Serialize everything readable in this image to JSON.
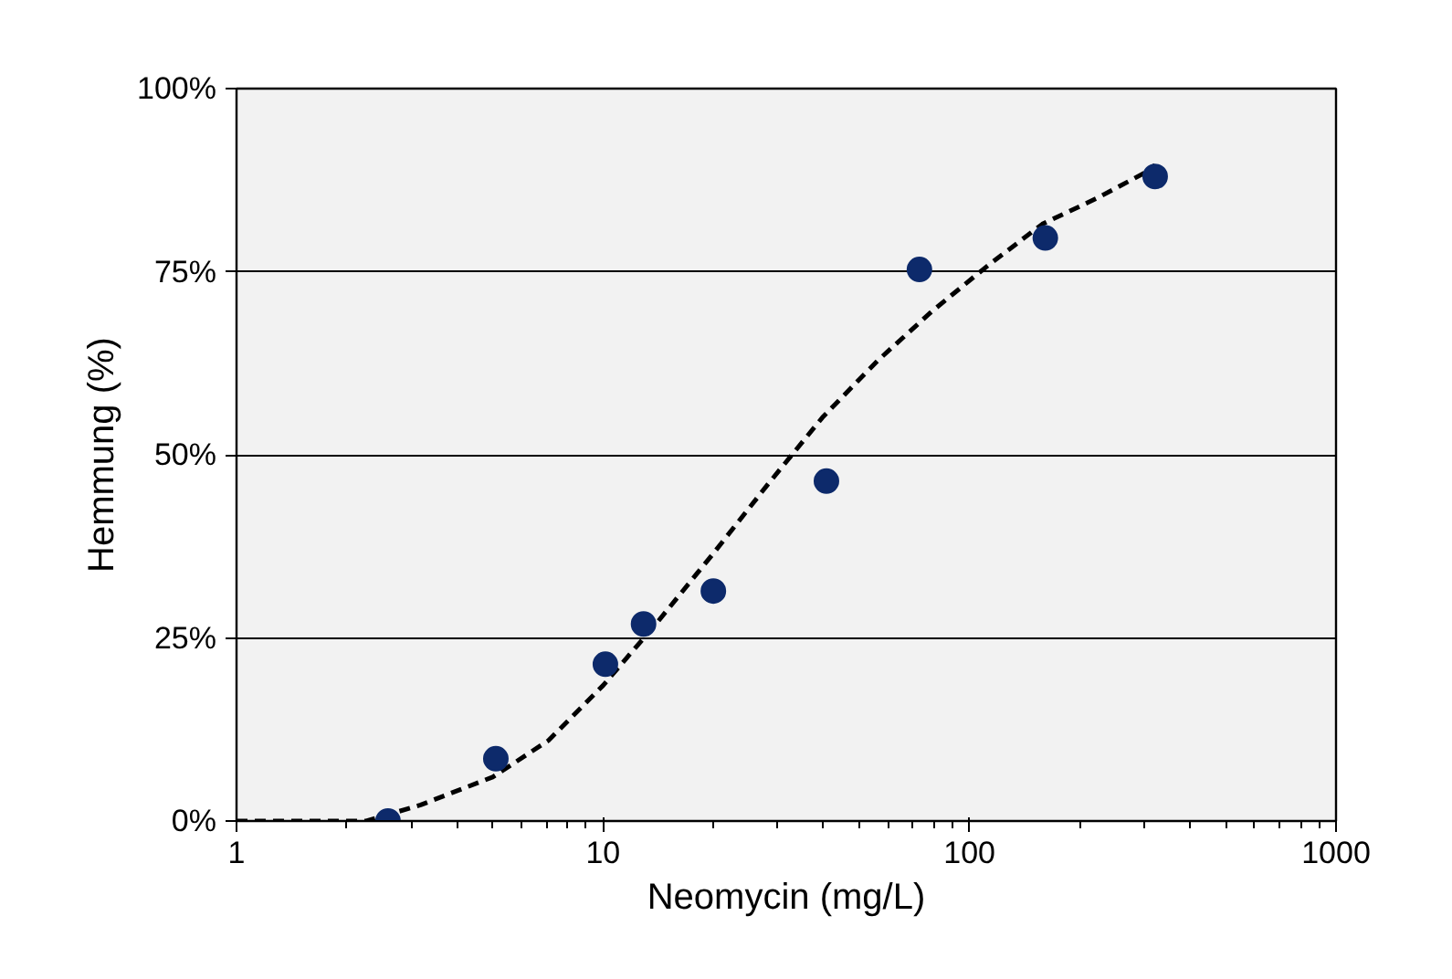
{
  "chart_data": {
    "type": "scatter",
    "xlabel": "Neomycin (mg/L)",
    "ylabel": "Hemmung (%)",
    "log": "x",
    "xlim": [
      1,
      1000
    ],
    "xticks": [
      1,
      10,
      100,
      1000
    ],
    "ylim": [
      0,
      100
    ],
    "yticks": [
      {
        "value": 0,
        "label": "0%"
      },
      {
        "value": 25,
        "label": "25%"
      },
      {
        "value": 50,
        "label": "50%"
      },
      {
        "value": 75,
        "label": "75%"
      },
      {
        "value": 100,
        "label": "100%"
      }
    ],
    "grid": "y",
    "series": [
      {
        "type": "line",
        "color": "#000000",
        "line_style": "dashed",
        "marker": "none",
        "x": [
          1,
          2.26,
          3.18,
          5.0,
          7.1,
          10,
          14.1,
          19.9,
          28.1,
          39.7,
          56,
          79,
          112,
          158,
          222,
          314,
          321
        ],
        "values": [
          0,
          0,
          2.2,
          6,
          11,
          18.5,
          27.2,
          36.4,
          45.9,
          55.1,
          62.8,
          69.6,
          75.8,
          81.5,
          85,
          89,
          89.6
        ]
      },
      {
        "color": "#0d2a6b",
        "marker": "circle",
        "x": [
          2.59,
          5.1,
          10.15,
          12.9,
          20,
          40.7,
          73,
          161,
          321
        ],
        "values": [
          0,
          8.5,
          21.4,
          26.9,
          31.4,
          46.4,
          75.3,
          79.6,
          88.0
        ]
      }
    ]
  }
}
